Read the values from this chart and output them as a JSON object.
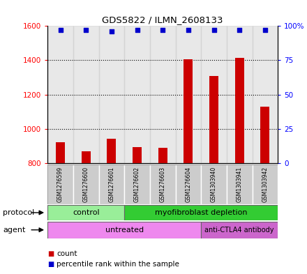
{
  "title": "GDS5822 / ILMN_2608133",
  "samples": [
    "GSM1276599",
    "GSM1276600",
    "GSM1276601",
    "GSM1276602",
    "GSM1276603",
    "GSM1276604",
    "GSM1303940",
    "GSM1303941",
    "GSM1303942"
  ],
  "counts": [
    920,
    870,
    940,
    895,
    890,
    1405,
    1310,
    1415,
    1130
  ],
  "percentile_ranks": [
    97,
    97,
    96,
    97,
    97,
    97,
    97,
    97,
    97
  ],
  "ylim_left": [
    800,
    1600
  ],
  "ylim_right": [
    0,
    100
  ],
  "yticks_left": [
    800,
    1000,
    1200,
    1400,
    1600
  ],
  "yticks_right": [
    0,
    25,
    50,
    75,
    100
  ],
  "ytick_right_labels": [
    "0",
    "25",
    "50",
    "75",
    "100%"
  ],
  "bar_color": "#CC0000",
  "dot_color": "#0000CC",
  "bar_bottom": 800,
  "protocol_groups": [
    {
      "label": "control",
      "start": 0,
      "end": 3,
      "color": "#99EE99"
    },
    {
      "label": "myofibroblast depletion",
      "start": 3,
      "end": 9,
      "color": "#33CC33"
    }
  ],
  "agent_groups": [
    {
      "label": "untreated",
      "start": 0,
      "end": 6,
      "color": "#EE88EE"
    },
    {
      "label": "anti-CTLA4 antibody",
      "start": 6,
      "end": 9,
      "color": "#CC66CC"
    }
  ],
  "background_color": "#FFFFFF",
  "sample_box_color": "#CCCCCC",
  "grid_yticks": [
    1000,
    1200,
    1400
  ]
}
